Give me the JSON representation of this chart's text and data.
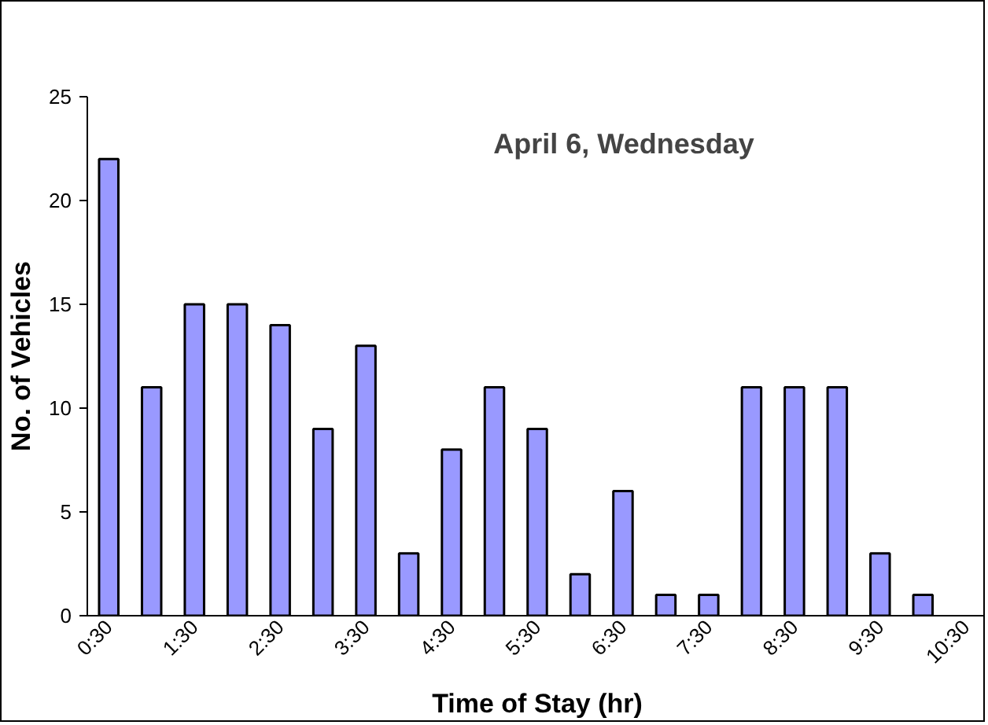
{
  "chart_data": {
    "type": "bar",
    "title": "April 6, Wednesday",
    "xlabel": "Time of Stay (hr)",
    "ylabel": "No. of Vehicles",
    "categories": [
      "0:30",
      null,
      "1:30",
      null,
      "2:30",
      null,
      "3:30",
      null,
      "4:30",
      null,
      "5:30",
      null,
      "6:30",
      null,
      "7:30",
      null,
      "8:30",
      null,
      "9:30",
      null,
      "10:30"
    ],
    "values": [
      22,
      11,
      15,
      15,
      14,
      9,
      13,
      3,
      8,
      11,
      9,
      2,
      6,
      1,
      1,
      11,
      11,
      11,
      3,
      1,
      null
    ],
    "color": "#9999ff",
    "ylim": [
      0,
      25
    ],
    "yticks": [
      0,
      5,
      10,
      15,
      20,
      25
    ],
    "grid": false
  }
}
